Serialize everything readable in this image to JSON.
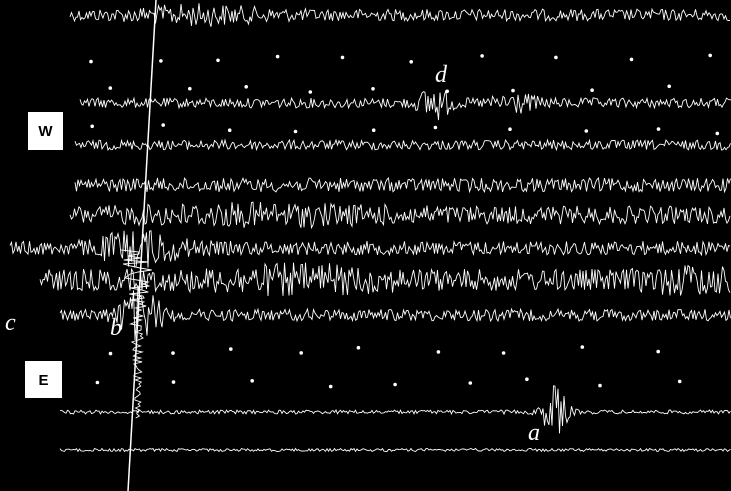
{
  "labels": {
    "west": "W",
    "east": "E",
    "annotations": [
      "d",
      "c",
      "b",
      "a"
    ]
  }
}
